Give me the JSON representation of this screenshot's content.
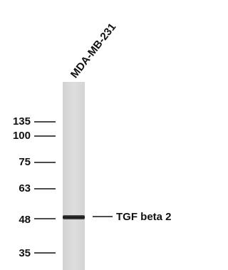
{
  "lane": {
    "label": "MDA-MB-231"
  },
  "markers": [
    "135",
    "100",
    "75",
    "63",
    "48",
    "35"
  ],
  "band": {
    "label": "TGF beta 2"
  }
}
